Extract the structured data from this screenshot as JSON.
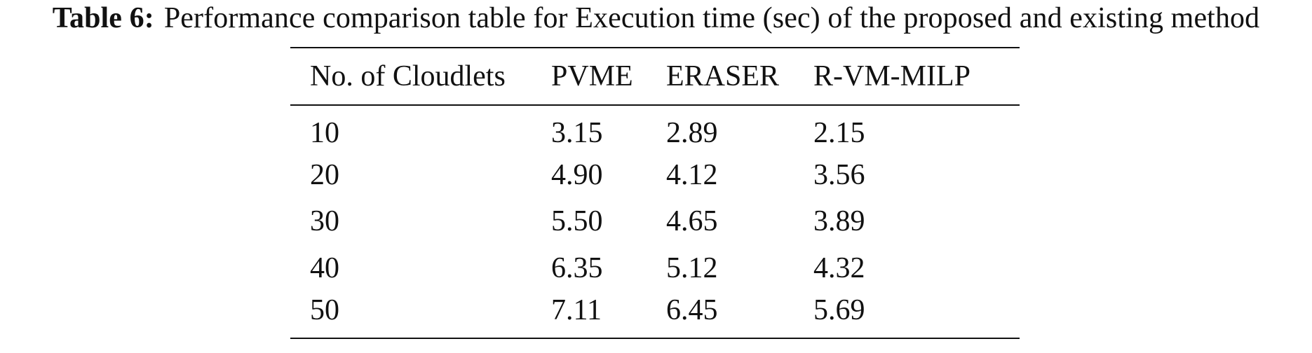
{
  "caption": {
    "label": "Table 6:",
    "text": "Performance comparison table for Execution time (sec) of the proposed and existing method"
  },
  "table": {
    "columns": [
      "No. of Cloudlets",
      "PVME",
      "ERASER",
      "R-VM-MILP"
    ],
    "rows": [
      [
        "10",
        "3.15",
        "2.89",
        "2.15"
      ],
      [
        "20",
        "4.90",
        "4.12",
        "3.56"
      ],
      [
        "30",
        "5.50",
        "4.65",
        "3.89"
      ],
      [
        "40",
        "6.35",
        "5.12",
        "4.32"
      ],
      [
        "50",
        "7.11",
        "6.45",
        "5.69"
      ]
    ]
  }
}
